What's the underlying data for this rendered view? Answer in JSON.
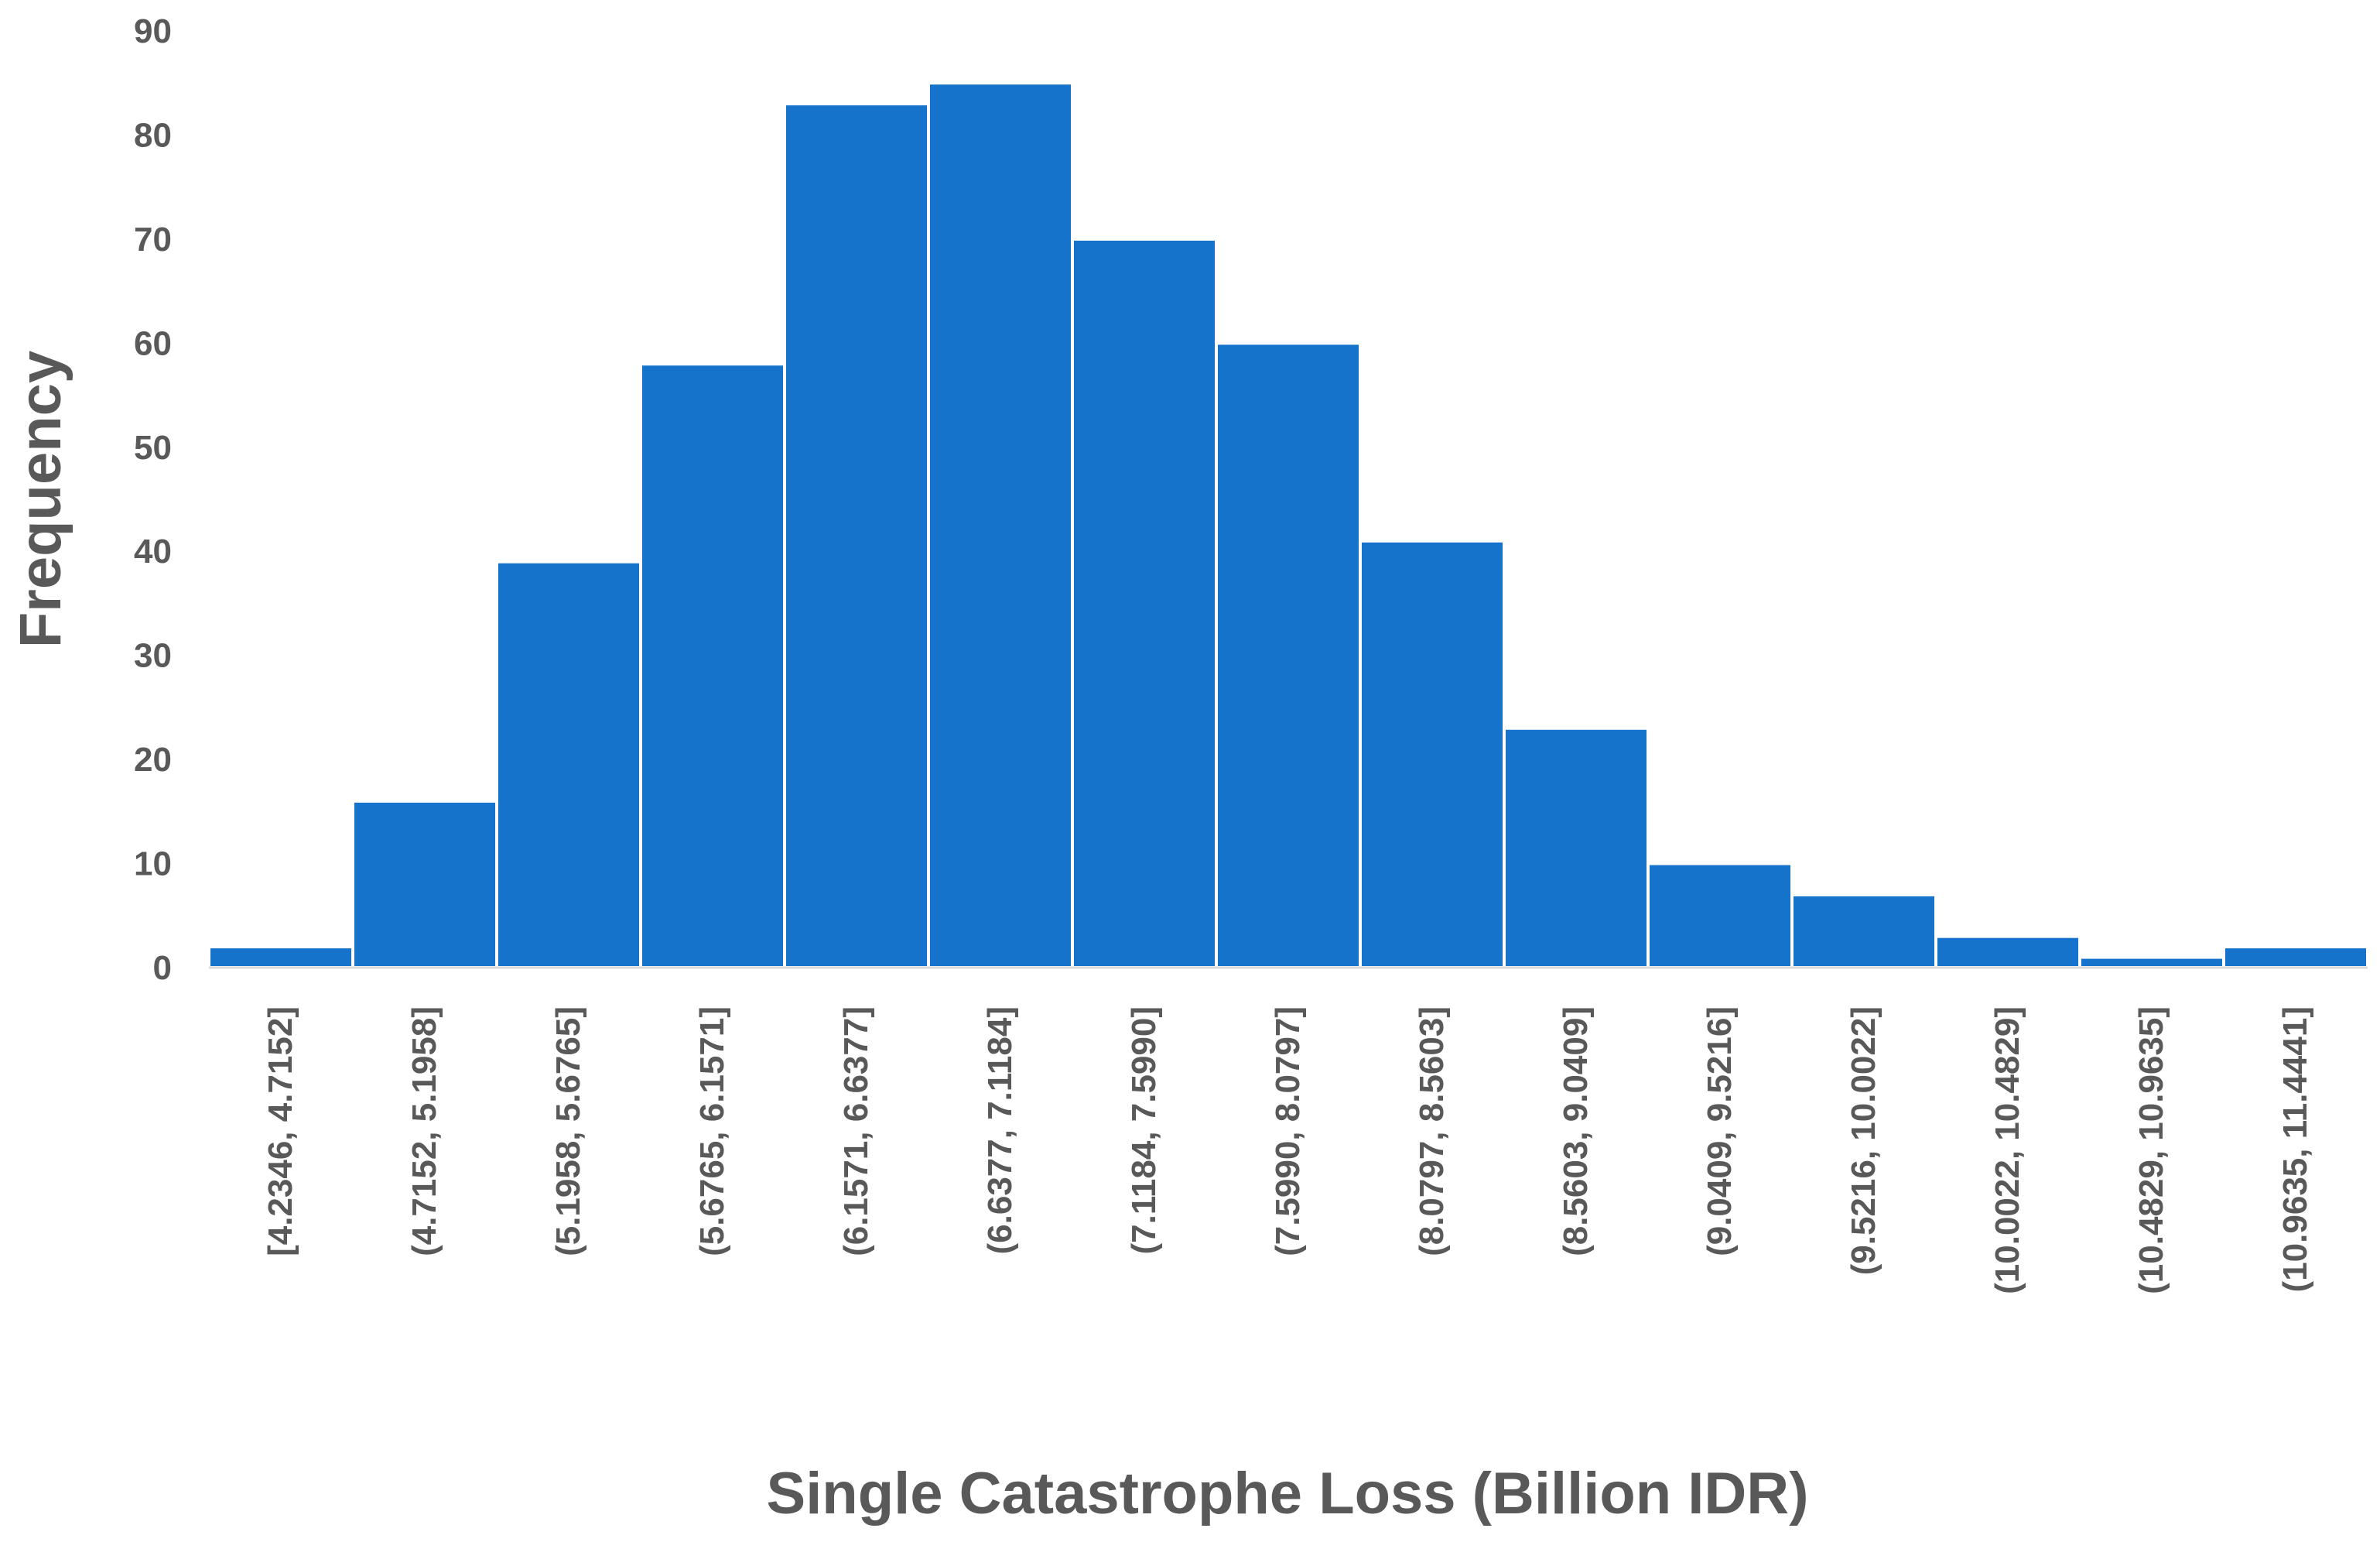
{
  "chart_data": {
    "type": "bar",
    "title": "",
    "xlabel": "Single Catastrophe Loss (Billion IDR)",
    "ylabel": "Frequency",
    "ylim": [
      0,
      90
    ],
    "yticks": [
      "0",
      "10",
      "20",
      "30",
      "40",
      "50",
      "60",
      "70",
      "80",
      "90"
    ],
    "grid": false,
    "bar_color": "#1573cb",
    "categories": [
      "[4.2346, 4.7152]",
      "(4.7152, 5.1958]",
      "(5.1958, 5.6765]",
      "(5.6765, 6.1571]",
      "(6.1571, 6.6377]",
      "(6.6377, 7.1184]",
      "(7.1184, 7.5990]",
      "(7.5990, 8.0797]",
      "(8.0797, 8.5603]",
      "(8.5603, 9.0409]",
      "(9.0409, 9.5216]",
      "(9.5216, 10.0022]",
      "(10.0022, 10.4829]",
      "(10.4829, 10.9635]",
      "(10.9635, 11.4441]"
    ],
    "values": [
      2,
      16,
      39,
      58,
      83,
      85,
      70,
      60,
      41,
      23,
      10,
      7,
      3,
      1,
      2
    ]
  }
}
